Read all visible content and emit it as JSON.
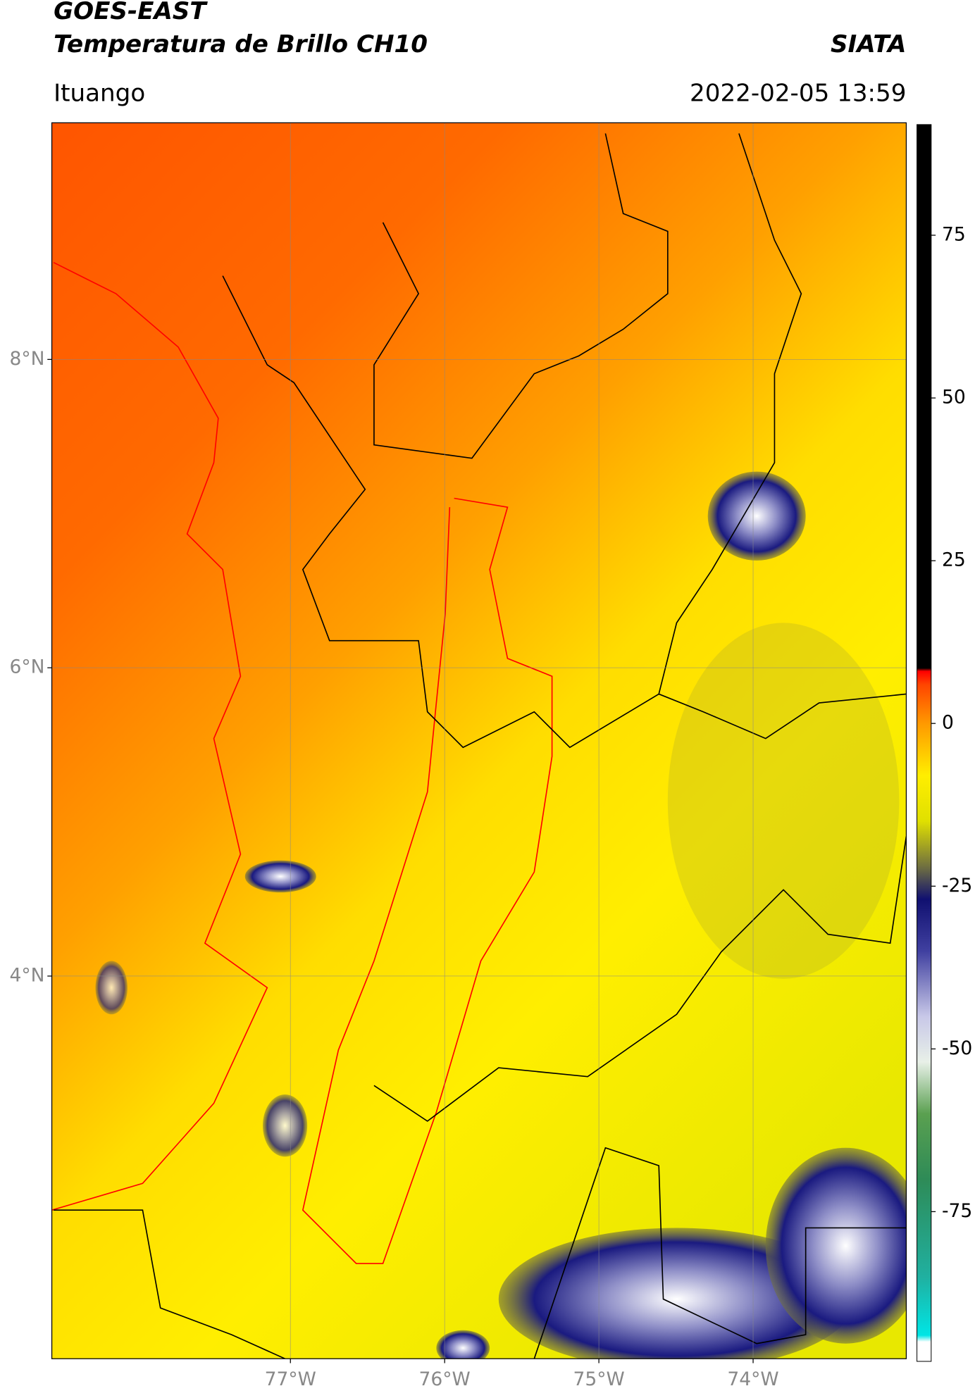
{
  "header": {
    "title": "GOES-EAST",
    "subtitle": "Temperatura de Brillo CH10",
    "source": "SIATA",
    "location": "Ituango",
    "datetime": "2022-02-05 13:59"
  },
  "map": {
    "latlim": [
      1.518,
      9.535
    ],
    "lonlim": [
      -78.547,
      -73.007
    ],
    "lat_ticks": [
      {
        "value": 8,
        "label": "8°N"
      },
      {
        "value": 6,
        "label": "6°N"
      },
      {
        "value": 4,
        "label": "4°N"
      }
    ],
    "lon_ticks": [
      {
        "value": -77,
        "label": "77°W"
      },
      {
        "value": -76,
        "label": "76°W"
      },
      {
        "value": -75,
        "label": "75°W"
      },
      {
        "value": -74,
        "label": "74°W"
      }
    ],
    "grid": true
  },
  "colorbar": {
    "vlim": [
      -98,
      92
    ],
    "ticks": [
      75,
      50,
      25,
      0,
      -25,
      -50,
      -75
    ],
    "stops": [
      {
        "value": -98,
        "color": "#ffffff"
      },
      {
        "value": -95,
        "color": "#ffffff"
      },
      {
        "value": -94,
        "color": "#00e5e5"
      },
      {
        "value": -85,
        "color": "#20b0a0"
      },
      {
        "value": -70,
        "color": "#2e8b57"
      },
      {
        "value": -60,
        "color": "#5aa050"
      },
      {
        "value": -52,
        "color": "#e8f0e8"
      },
      {
        "value": -45,
        "color": "#c8c8e8"
      },
      {
        "value": -35,
        "color": "#4040a0"
      },
      {
        "value": -27,
        "color": "#101070"
      },
      {
        "value": -22,
        "color": "#707040"
      },
      {
        "value": -15,
        "color": "#e0e000"
      },
      {
        "value": -8,
        "color": "#ffee00"
      },
      {
        "value": 0,
        "color": "#ff9900"
      },
      {
        "value": 6,
        "color": "#ff4400"
      },
      {
        "value": 8,
        "color": "#ff0000"
      },
      {
        "value": 8.5,
        "color": "#000000"
      },
      {
        "value": 92,
        "color": "#000000"
      }
    ]
  }
}
